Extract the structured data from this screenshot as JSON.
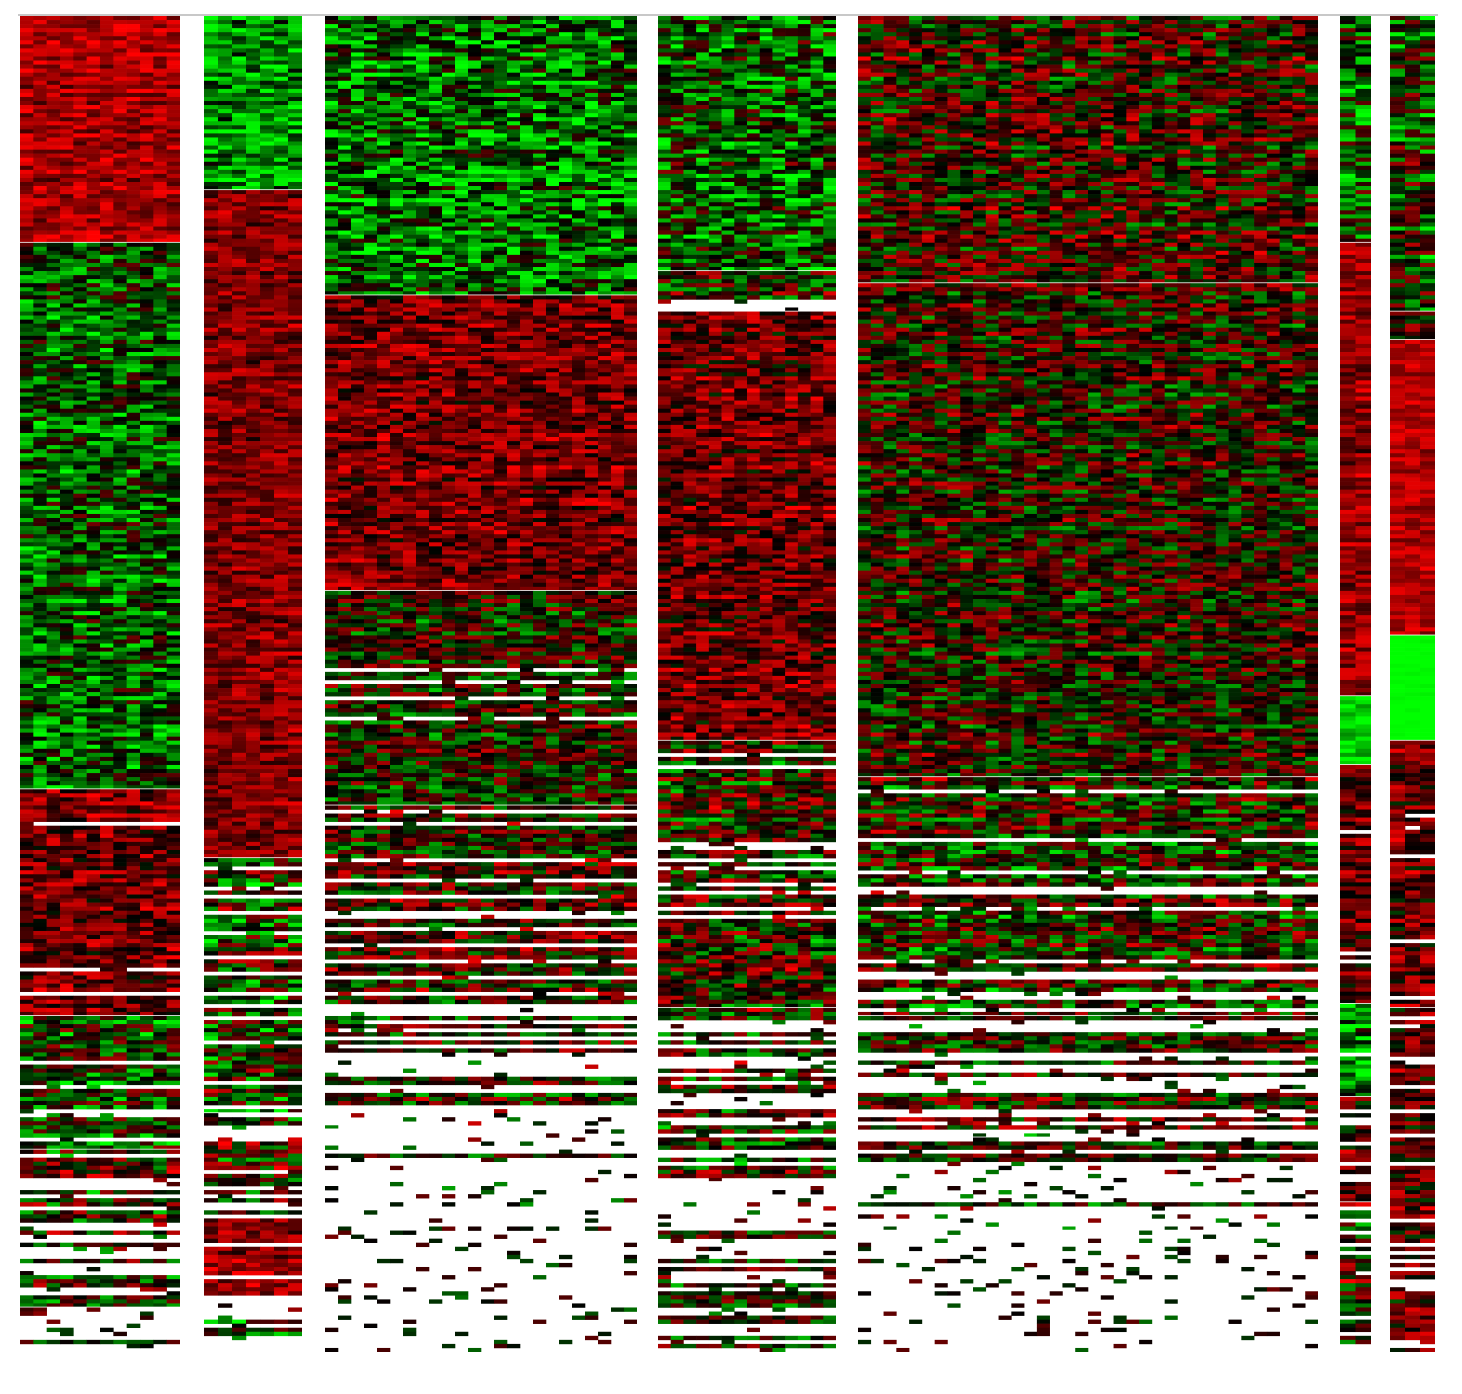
{
  "chart_data": {
    "type": "heatmap",
    "title": "",
    "xlabel": "",
    "ylabel": "",
    "colormap": {
      "low": "#00ff00",
      "mid": "#000000",
      "high": "#ff0000",
      "missing": "#ffffff"
    },
    "color_scale": [
      -1,
      1
    ],
    "legend": "none",
    "grid": false,
    "panels": [
      {
        "name": "",
        "columns": 12,
        "row_blocks": [
          {
            "fraction": 0.17,
            "mean": 0.65,
            "spread": 0.35,
            "missing": 0.0
          },
          {
            "fraction": 0.41,
            "mean": -0.3,
            "spread": 0.6,
            "missing": 0.0
          },
          {
            "fraction": 0.17,
            "mean": 0.45,
            "spread": 0.5,
            "missing": 0.05
          },
          {
            "fraction": 0.1,
            "mean": -0.2,
            "spread": 0.7,
            "missing": 0.25
          },
          {
            "fraction": 0.08,
            "mean": 0.1,
            "spread": 0.8,
            "missing": 0.45
          },
          {
            "fraction": 0.04,
            "mean": 0.0,
            "spread": 0.7,
            "missing": 0.7
          },
          {
            "fraction": 0.03,
            "mean": 0.0,
            "spread": 0.5,
            "missing": 0.95
          }
        ]
      },
      {
        "name": "",
        "columns": 7,
        "row_blocks": [
          {
            "fraction": 0.13,
            "mean": -0.55,
            "spread": 0.5,
            "missing": 0.0
          },
          {
            "fraction": 0.5,
            "mean": 0.5,
            "spread": 0.35,
            "missing": 0.0
          },
          {
            "fraction": 0.19,
            "mean": -0.1,
            "spread": 0.8,
            "missing": 0.25
          },
          {
            "fraction": 0.08,
            "mean": 0.05,
            "spread": 0.8,
            "missing": 0.4
          },
          {
            "fraction": 0.06,
            "mean": 0.55,
            "spread": 0.4,
            "missing": 0.2
          },
          {
            "fraction": 0.04,
            "mean": -0.1,
            "spread": 0.8,
            "missing": 0.45
          }
        ]
      },
      {
        "name": "",
        "columns": 24,
        "row_blocks": [
          {
            "fraction": 0.21,
            "mean": -0.4,
            "spread": 0.65,
            "missing": 0.0
          },
          {
            "fraction": 0.22,
            "mean": 0.45,
            "spread": 0.45,
            "missing": 0.0
          },
          {
            "fraction": 0.16,
            "mean": 0.0,
            "spread": 0.65,
            "missing": 0.1
          },
          {
            "fraction": 0.15,
            "mean": 0.15,
            "spread": 0.7,
            "missing": 0.25
          },
          {
            "fraction": 0.09,
            "mean": 0.05,
            "spread": 0.7,
            "missing": 0.45
          },
          {
            "fraction": 0.06,
            "mean": 0.0,
            "spread": 0.6,
            "missing": 0.75
          },
          {
            "fraction": 0.11,
            "mean": 0.0,
            "spread": 0.4,
            "missing": 0.97
          }
        ]
      },
      {
        "name": "",
        "columns": 14,
        "row_blocks": [
          {
            "fraction": 0.19,
            "mean": -0.3,
            "spread": 0.7,
            "missing": 0.0
          },
          {
            "fraction": 0.03,
            "mean": 0.0,
            "spread": 0.7,
            "missing": 0.3
          },
          {
            "fraction": 0.32,
            "mean": 0.4,
            "spread": 0.5,
            "missing": 0.0
          },
          {
            "fraction": 0.2,
            "mean": 0.05,
            "spread": 0.75,
            "missing": 0.25
          },
          {
            "fraction": 0.13,
            "mean": 0.05,
            "spread": 0.75,
            "missing": 0.35
          },
          {
            "fraction": 0.13,
            "mean": 0.0,
            "spread": 0.6,
            "missing": 0.75
          }
        ]
      },
      {
        "name": "",
        "columns": 36,
        "row_blocks": [
          {
            "fraction": 0.2,
            "mean": 0.15,
            "spread": 0.7,
            "missing": 0.0
          },
          {
            "fraction": 0.37,
            "mean": 0.1,
            "spread": 0.65,
            "missing": 0.0
          },
          {
            "fraction": 0.18,
            "mean": 0.0,
            "spread": 0.75,
            "missing": 0.2
          },
          {
            "fraction": 0.09,
            "mean": 0.0,
            "spread": 0.7,
            "missing": 0.5
          },
          {
            "fraction": 0.07,
            "mean": 0.0,
            "spread": 0.6,
            "missing": 0.8
          },
          {
            "fraction": 0.09,
            "mean": 0.0,
            "spread": 0.4,
            "missing": 0.99
          }
        ]
      },
      {
        "name": "",
        "columns": 2,
        "row_blocks": [
          {
            "fraction": 0.17,
            "mean": -0.3,
            "spread": 0.7,
            "missing": 0.0
          },
          {
            "fraction": 0.34,
            "mean": 0.55,
            "spread": 0.35,
            "missing": 0.0
          },
          {
            "fraction": 0.05,
            "mean": -0.8,
            "spread": 0.25,
            "missing": 0.0
          },
          {
            "fraction": 0.18,
            "mean": 0.35,
            "spread": 0.45,
            "missing": 0.05
          },
          {
            "fraction": 0.07,
            "mean": -0.5,
            "spread": 0.6,
            "missing": 0.15
          },
          {
            "fraction": 0.08,
            "mean": 0.2,
            "spread": 0.6,
            "missing": 0.2
          },
          {
            "fraction": 0.11,
            "mean": 0.1,
            "spread": 0.7,
            "missing": 0.3
          }
        ]
      },
      {
        "name": "",
        "columns": 3,
        "row_blocks": [
          {
            "fraction": 0.22,
            "mean": -0.1,
            "spread": 0.75,
            "missing": 0.0
          },
          {
            "fraction": 0.02,
            "mean": 0.3,
            "spread": 0.5,
            "missing": 0.0
          },
          {
            "fraction": 0.22,
            "mean": 0.7,
            "spread": 0.25,
            "missing": 0.0
          },
          {
            "fraction": 0.08,
            "mean": -1.0,
            "spread": 0.05,
            "missing": 0.0
          },
          {
            "fraction": 0.2,
            "mean": 0.35,
            "spread": 0.5,
            "missing": 0.1
          },
          {
            "fraction": 0.26,
            "mean": 0.3,
            "spread": 0.55,
            "missing": 0.2
          }
        ]
      }
    ]
  }
}
